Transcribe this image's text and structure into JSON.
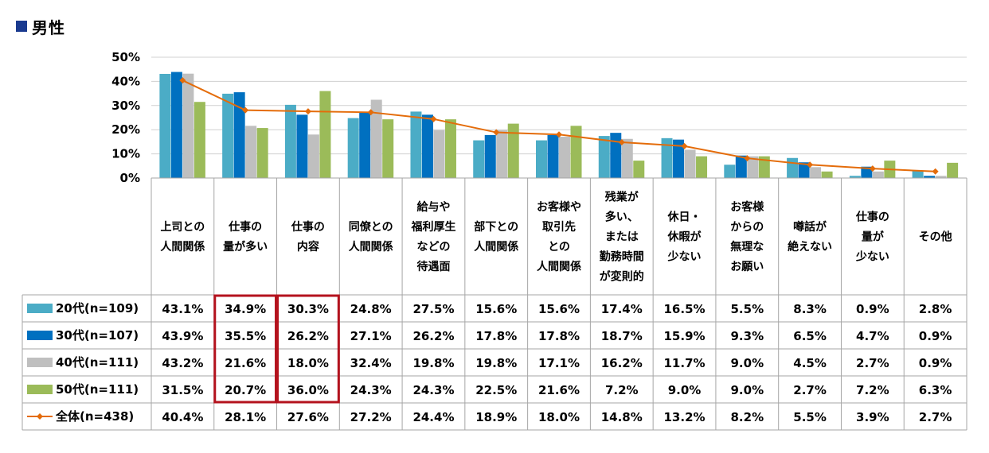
{
  "title": "男性",
  "colors": {
    "accent": "#1a3a8f",
    "highlight": "#b4121d"
  },
  "chart_data": {
    "type": "bar",
    "ylim": [
      0,
      50
    ],
    "yticks": [
      "0%",
      "10%",
      "20%",
      "30%",
      "40%",
      "50%"
    ],
    "grid": true,
    "categories": [
      "上司との\n人間関係",
      "仕事の\n量が多い",
      "仕事の\n内容",
      "同僚との\n人間関係",
      "給与や\n福利厚生\nなどの\n待遇面",
      "部下との\n人間関係",
      "お客様や\n取引先\nとの\n人間関係",
      "残業が\n多い、\nまたは\n勤務時間\nが変則的",
      "休日・\n休暇が\n少ない",
      "お客様\nからの\n無理な\nお願い",
      "噂話が\n絶えない",
      "仕事の\n量が\n少ない",
      "その他"
    ],
    "series": [
      {
        "name": "20代(n=109)",
        "color": "#4bacc6",
        "kind": "bar",
        "values": [
          43.1,
          34.9,
          30.3,
          24.8,
          27.5,
          15.6,
          15.6,
          17.4,
          16.5,
          5.5,
          8.3,
          0.9,
          2.8
        ],
        "labels": [
          "43.1%",
          "34.9%",
          "30.3%",
          "24.8%",
          "27.5%",
          "15.6%",
          "15.6%",
          "17.4%",
          "16.5%",
          "5.5%",
          "8.3%",
          "0.9%",
          "2.8%"
        ]
      },
      {
        "name": "30代(n=107)",
        "color": "#0070c0",
        "kind": "bar",
        "values": [
          43.9,
          35.5,
          26.2,
          27.1,
          26.2,
          17.8,
          17.8,
          18.7,
          15.9,
          9.3,
          6.5,
          4.7,
          0.9
        ],
        "labels": [
          "43.9%",
          "35.5%",
          "26.2%",
          "27.1%",
          "26.2%",
          "17.8%",
          "17.8%",
          "18.7%",
          "15.9%",
          "9.3%",
          "6.5%",
          "4.7%",
          "0.9%"
        ]
      },
      {
        "name": "40代(n=111)",
        "color": "#bfbfbf",
        "kind": "bar",
        "values": [
          43.2,
          21.6,
          18.0,
          32.4,
          19.8,
          19.8,
          17.1,
          16.2,
          11.7,
          9.0,
          4.5,
          2.7,
          0.9
        ],
        "labels": [
          "43.2%",
          "21.6%",
          "18.0%",
          "32.4%",
          "19.8%",
          "19.8%",
          "17.1%",
          "16.2%",
          "11.7%",
          "9.0%",
          "4.5%",
          "2.7%",
          "0.9%"
        ]
      },
      {
        "name": "50代(n=111)",
        "color": "#9bbb59",
        "kind": "bar",
        "values": [
          31.5,
          20.7,
          36.0,
          24.3,
          24.3,
          22.5,
          21.6,
          7.2,
          9.0,
          9.0,
          2.7,
          7.2,
          6.3
        ],
        "labels": [
          "31.5%",
          "20.7%",
          "36.0%",
          "24.3%",
          "24.3%",
          "22.5%",
          "21.6%",
          "7.2%",
          "9.0%",
          "9.0%",
          "2.7%",
          "7.2%",
          "6.3%"
        ]
      },
      {
        "name": "全体(n=438)",
        "color": "#e46c0a",
        "kind": "line",
        "values": [
          40.4,
          28.1,
          27.6,
          27.2,
          24.4,
          18.9,
          18.0,
          14.8,
          13.2,
          8.2,
          5.5,
          3.9,
          2.7
        ],
        "labels": [
          "40.4%",
          "28.1%",
          "27.6%",
          "27.2%",
          "24.4%",
          "18.9%",
          "18.0%",
          "14.8%",
          "13.2%",
          "8.2%",
          "5.5%",
          "3.9%",
          "2.7%"
        ]
      }
    ],
    "highlighted_columns": [
      1,
      2
    ]
  }
}
